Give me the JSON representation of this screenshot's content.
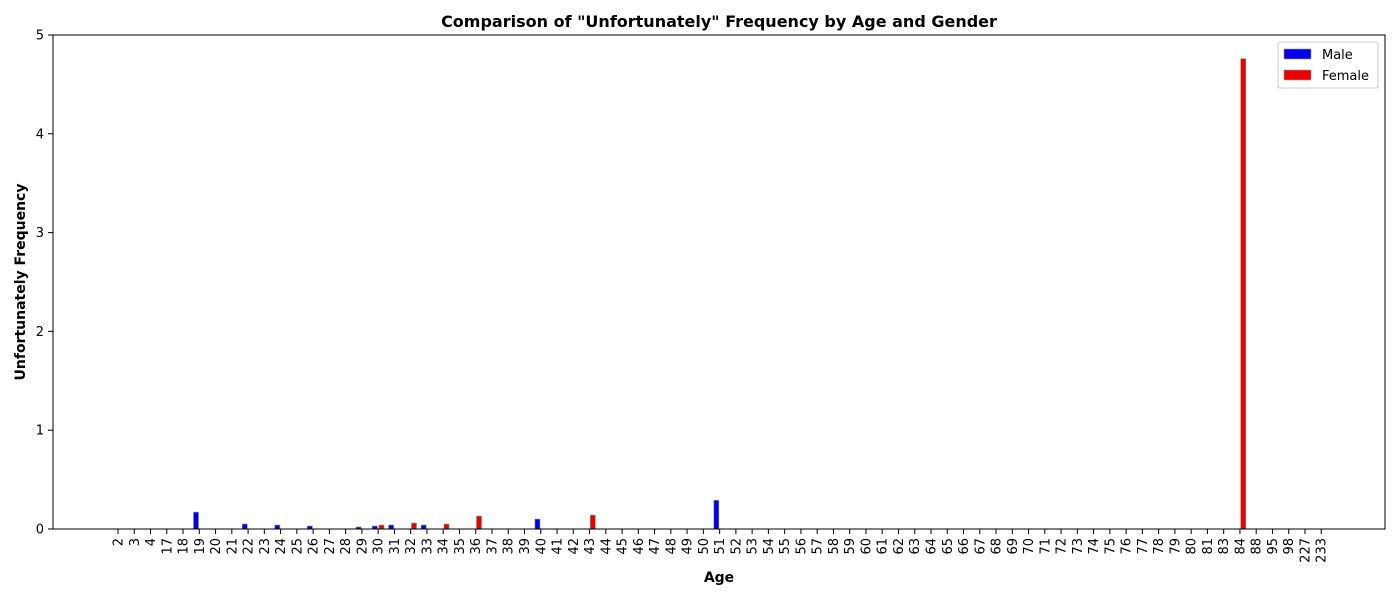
{
  "chart_data": {
    "type": "bar",
    "title": "Comparison of \"Unfortunately\" Frequency by Age and Gender",
    "xlabel": "Age",
    "ylabel": "Unfortunately Frequency",
    "ylim": [
      0,
      5
    ],
    "yticks": [
      "0",
      "1",
      "2",
      "3",
      "4",
      "5"
    ],
    "grid": false,
    "legend_position": "top-right",
    "categories": [
      "2",
      "3",
      "4",
      "17",
      "18",
      "19",
      "20",
      "21",
      "22",
      "23",
      "24",
      "25",
      "26",
      "27",
      "28",
      "29",
      "30",
      "31",
      "32",
      "33",
      "34",
      "35",
      "36",
      "37",
      "38",
      "39",
      "40",
      "41",
      "42",
      "43",
      "44",
      "45",
      "46",
      "47",
      "48",
      "49",
      "50",
      "51",
      "52",
      "53",
      "54",
      "55",
      "56",
      "57",
      "58",
      "59",
      "60",
      "61",
      "62",
      "63",
      "64",
      "65",
      "66",
      "67",
      "68",
      "69",
      "70",
      "71",
      "72",
      "73",
      "74",
      "75",
      "76",
      "77",
      "78",
      "79",
      "80",
      "81",
      "83",
      "84",
      "88",
      "95",
      "98",
      "227",
      "233"
    ],
    "series": [
      {
        "name": "Male",
        "color": "#0000ee",
        "values": [
          0,
          0,
          0,
          0,
          0,
          0.17,
          0,
          0,
          0.05,
          0,
          0.04,
          0,
          0.03,
          0,
          0,
          0.02,
          0.03,
          0.04,
          0,
          0.04,
          0,
          0,
          0,
          0,
          0,
          0,
          0.1,
          0,
          0,
          0,
          0,
          0,
          0,
          0,
          0,
          0,
          0,
          0.29,
          0,
          0,
          0,
          0,
          0,
          0,
          0,
          0,
          0,
          0,
          0,
          0,
          0,
          0,
          0,
          0,
          0,
          0,
          0,
          0,
          0,
          0,
          0,
          0,
          0,
          0,
          0,
          0,
          0,
          0,
          0,
          0,
          0,
          0,
          0,
          0,
          0
        ]
      },
      {
        "name": "Female",
        "color": "#ee0000",
        "values": [
          0,
          0,
          0,
          0,
          0,
          0,
          0,
          0,
          0,
          0,
          0,
          0,
          0,
          0,
          0,
          0,
          0.04,
          0,
          0.06,
          0,
          0.05,
          0,
          0.13,
          0,
          0,
          0,
          0,
          0,
          0,
          0.14,
          0,
          0,
          0,
          0,
          0,
          0,
          0,
          0,
          0,
          0,
          0,
          0,
          0,
          0,
          0,
          0,
          0,
          0,
          0,
          0,
          0,
          0,
          0,
          0,
          0,
          0,
          0,
          0,
          0,
          0,
          0,
          0,
          0,
          0,
          0,
          0,
          0,
          0,
          0,
          4.76,
          0,
          0,
          0,
          0,
          0
        ]
      }
    ]
  }
}
